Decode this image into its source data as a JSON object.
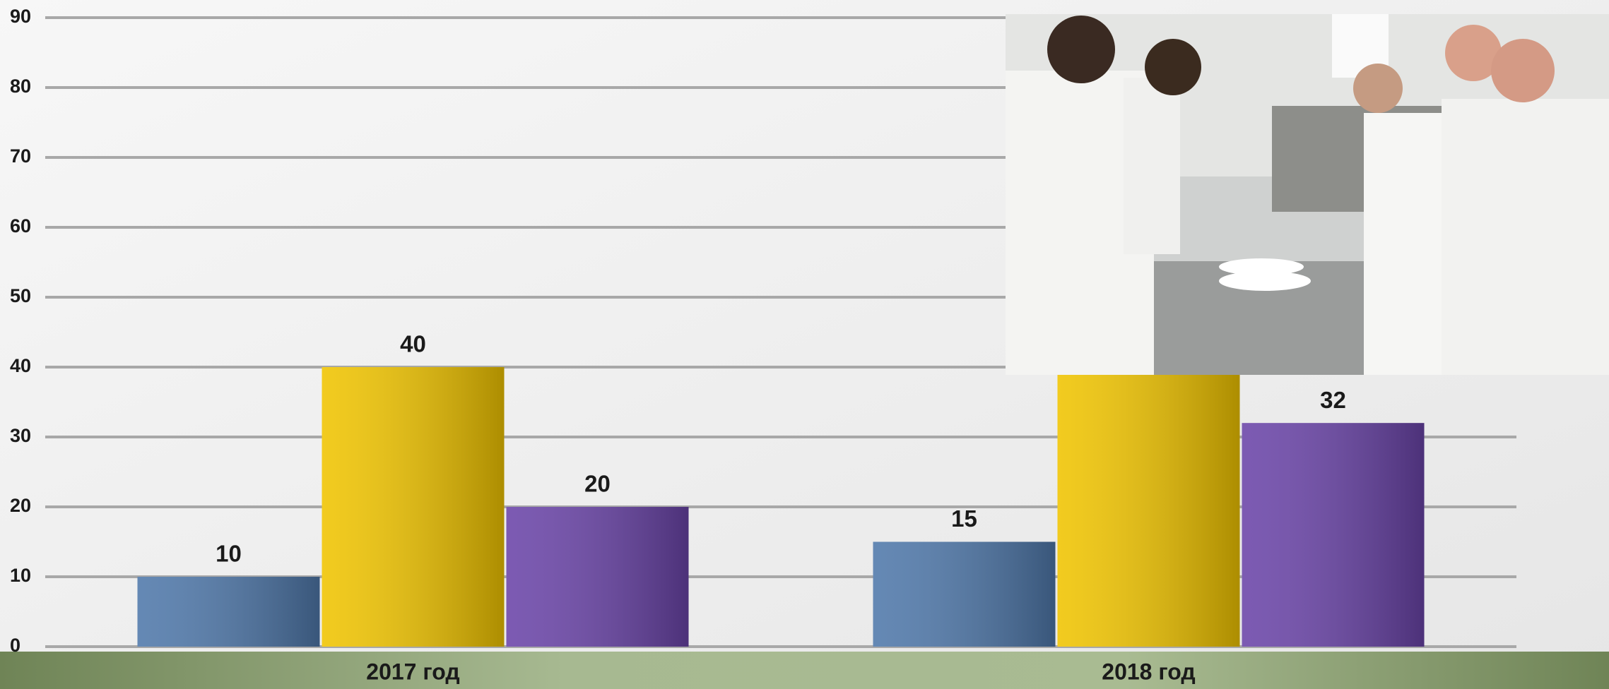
{
  "chart_data": {
    "type": "bar",
    "categories": [
      "2017 год",
      "2018 год"
    ],
    "series": [
      {
        "color": "#4f78aa",
        "values": [
          10,
          15
        ]
      },
      {
        "color": "#f0c400",
        "values": [
          40,
          45
        ]
      },
      {
        "color": "#6a44a8",
        "values": [
          20,
          32
        ]
      }
    ],
    "ylim": [
      0,
      90
    ],
    "yticks": [
      0,
      10,
      20,
      30,
      40,
      50,
      60,
      70,
      80,
      90
    ],
    "grid": true
  }
}
